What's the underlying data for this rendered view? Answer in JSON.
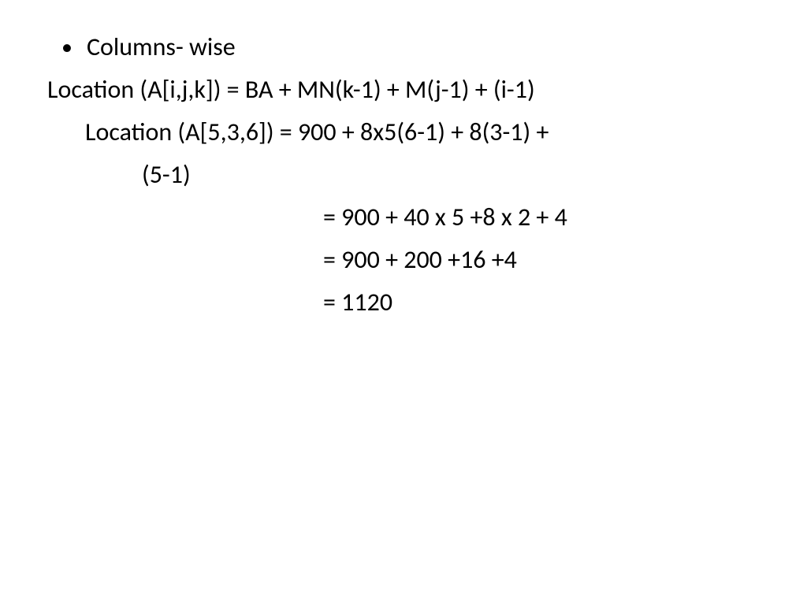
{
  "text_color": "#000000",
  "background_color": "#ffffff",
  "font_family": "Calibri",
  "base_fontsize": 32,
  "bullet": {
    "mark": "•",
    "label": "Columns- wise"
  },
  "lines": {
    "formula_general": "Location (A[i,j,k]) = BA + MN(k-1) + M(j-1) + (i-1)",
    "formula_substituted": "Location (A[5,3,6]) = 900 + 8x5(6-1) + 8(3-1) +",
    "formula_sub_cont": "(5-1)",
    "step1": "= 900 + 40 x 5 +8 x 2 + 4",
    "step2": "= 900 + 200 +16 +4",
    "result": "= 1120"
  }
}
